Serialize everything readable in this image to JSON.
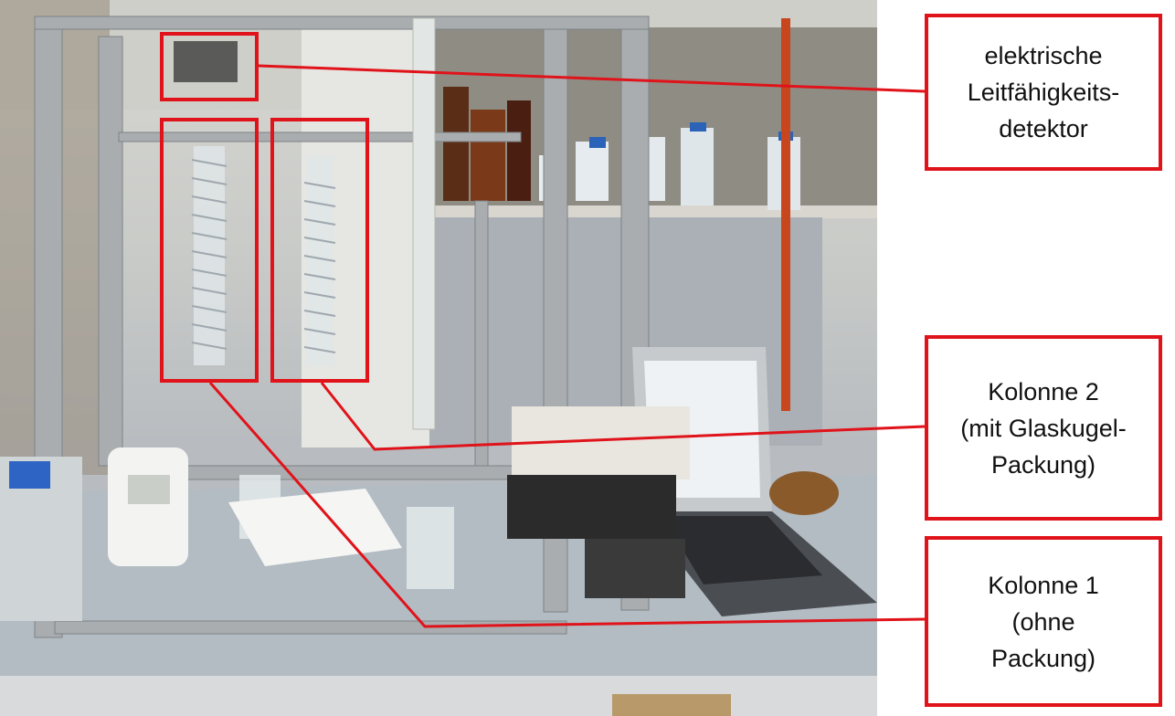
{
  "callouts": {
    "detector": {
      "lines": [
        "elektrische",
        "Leitfähigkeits-",
        "detektor"
      ]
    },
    "column2": {
      "lines": [
        "Kolonne 2",
        "(mit Glaskugel-",
        "Packung)"
      ]
    },
    "column1": {
      "lines": [
        "Kolonne 1",
        "(ohne",
        "Packung)"
      ]
    }
  },
  "colors": {
    "annotation_red": "#e0131a"
  }
}
